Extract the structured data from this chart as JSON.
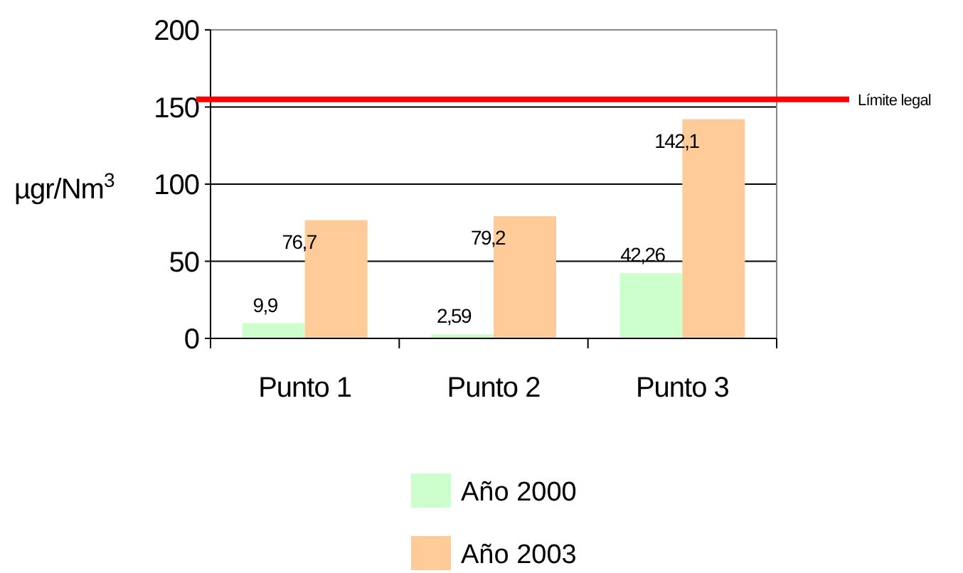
{
  "chart_data": {
    "type": "bar",
    "ylabel": "µgr/Nm$^{3}$",
    "categories": [
      "Punto 1",
      "Punto 2",
      "Punto 3"
    ],
    "series": [
      {
        "name": "Año 2000",
        "color": "#ccffcc",
        "values": [
          9.9,
          2.59,
          42.26
        ],
        "value_labels": [
          "9,9",
          "2,59",
          "42,26"
        ]
      },
      {
        "name": "Año 2003",
        "color": "#ffcc99",
        "values": [
          76.7,
          79.2,
          142.1
        ],
        "value_labels": [
          "76,7",
          "79,2",
          "142,1"
        ]
      }
    ],
    "ylim": [
      0,
      200
    ],
    "yticks": [
      0,
      50,
      100,
      150,
      200
    ],
    "grid": "y",
    "legend": "bottom",
    "ref_lines": [
      {
        "axis": "y",
        "value": 155,
        "label": "Límite legal",
        "color": "#ff0000"
      }
    ]
  }
}
